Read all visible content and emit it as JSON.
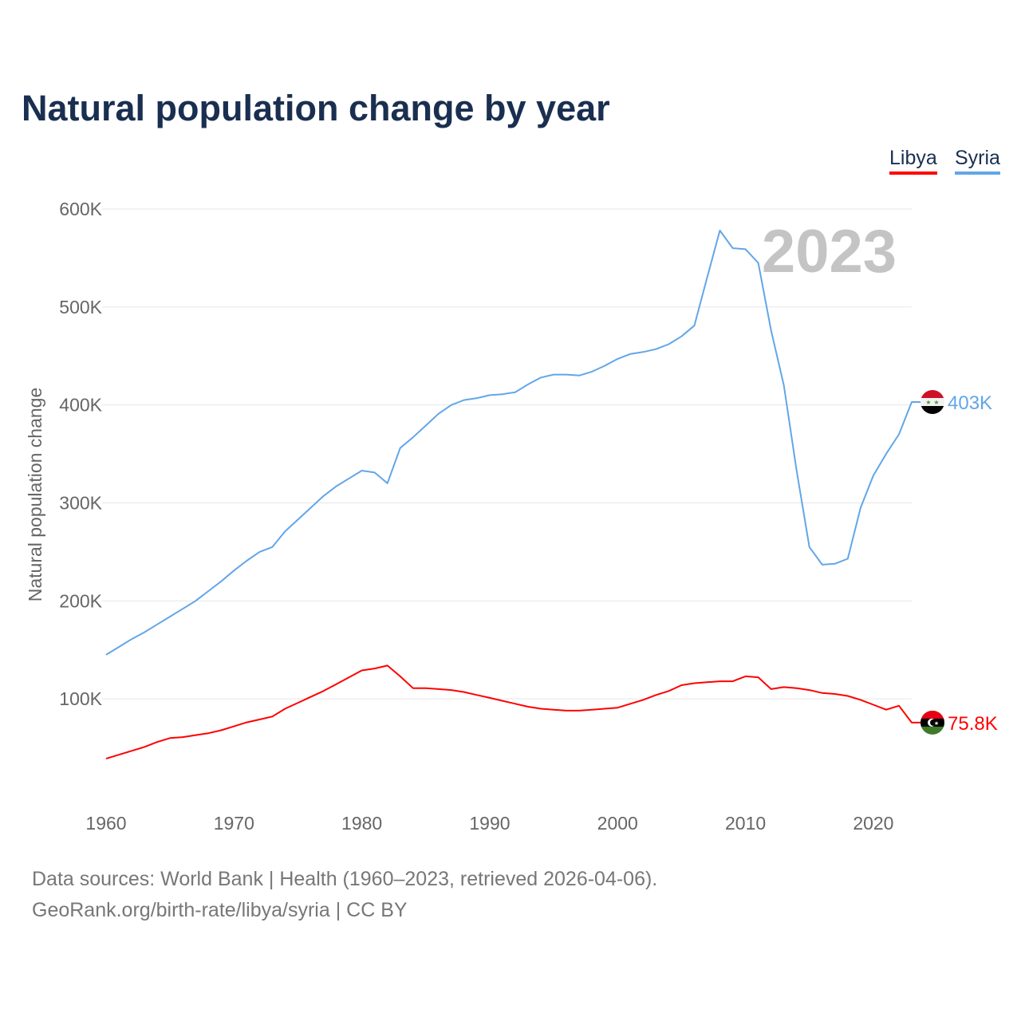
{
  "chart_data": {
    "type": "line",
    "title": "Natural population change by year",
    "ylabel": "Natural population change",
    "xlabel": "",
    "ylim": [
      0,
      600000
    ],
    "xlim": [
      1960,
      2023
    ],
    "yticks": [
      100000,
      200000,
      300000,
      400000,
      500000,
      600000
    ],
    "ytick_labels": [
      "100K",
      "200K",
      "300K",
      "400K",
      "500K",
      "600K"
    ],
    "xticks": [
      1960,
      1970,
      1980,
      1990,
      2000,
      2010,
      2020
    ],
    "xtick_labels": [
      "1960",
      "1970",
      "1980",
      "1990",
      "2000",
      "2010",
      "2020"
    ],
    "grid": true,
    "legend_placement": "top-right",
    "year_watermark": "2023",
    "x": [
      1960,
      1961,
      1962,
      1963,
      1964,
      1965,
      1966,
      1967,
      1968,
      1969,
      1970,
      1971,
      1972,
      1973,
      1974,
      1975,
      1976,
      1977,
      1978,
      1979,
      1980,
      1981,
      1982,
      1983,
      1984,
      1985,
      1986,
      1987,
      1988,
      1989,
      1990,
      1991,
      1992,
      1993,
      1994,
      1995,
      1996,
      1997,
      1998,
      1999,
      2000,
      2001,
      2002,
      2003,
      2004,
      2005,
      2006,
      2007,
      2008,
      2009,
      2010,
      2011,
      2012,
      2013,
      2014,
      2015,
      2016,
      2017,
      2018,
      2019,
      2020,
      2021,
      2022,
      2023
    ],
    "series": [
      {
        "name": "Libya",
        "color": "#ff0000",
        "end_label": "75.8K",
        "values": [
          39000,
          43000,
          47000,
          51000,
          56000,
          60000,
          61000,
          63000,
          65000,
          68000,
          72000,
          76000,
          79000,
          82000,
          90000,
          96000,
          102000,
          108000,
          115000,
          122000,
          129000,
          131000,
          134000,
          123000,
          111000,
          111000,
          110000,
          109000,
          107000,
          104000,
          101000,
          98000,
          95000,
          92000,
          90000,
          89000,
          88000,
          88000,
          89000,
          90000,
          91000,
          95000,
          99000,
          104000,
          108000,
          114000,
          116000,
          117000,
          118000,
          118000,
          123000,
          122000,
          110000,
          112000,
          111000,
          109000,
          106000,
          105000,
          103000,
          99000,
          94000,
          89000,
          93000,
          75800
        ]
      },
      {
        "name": "Syria",
        "color": "#62a6e8",
        "end_label": "403K",
        "values": [
          145000,
          153000,
          161000,
          168000,
          176000,
          184000,
          192000,
          200000,
          210000,
          220000,
          231000,
          241000,
          250000,
          255000,
          271000,
          283000,
          295000,
          307000,
          317000,
          325000,
          333000,
          331000,
          320000,
          356000,
          367000,
          379000,
          391000,
          400000,
          405000,
          407000,
          410000,
          411000,
          413000,
          421000,
          428000,
          431000,
          431000,
          430000,
          434000,
          440000,
          447000,
          452000,
          454000,
          457000,
          462000,
          470000,
          481000,
          530000,
          578000,
          560000,
          559000,
          545000,
          476000,
          420000,
          333000,
          255000,
          237000,
          238000,
          243000,
          295000,
          328000,
          350000,
          370000,
          403000
        ]
      }
    ]
  },
  "footer": {
    "line1": "Data sources: World Bank | Health (1960–2023, retrieved 2026-04-06).",
    "line2": "GeoRank.org/birth-rate/libya/syria | CC BY"
  }
}
